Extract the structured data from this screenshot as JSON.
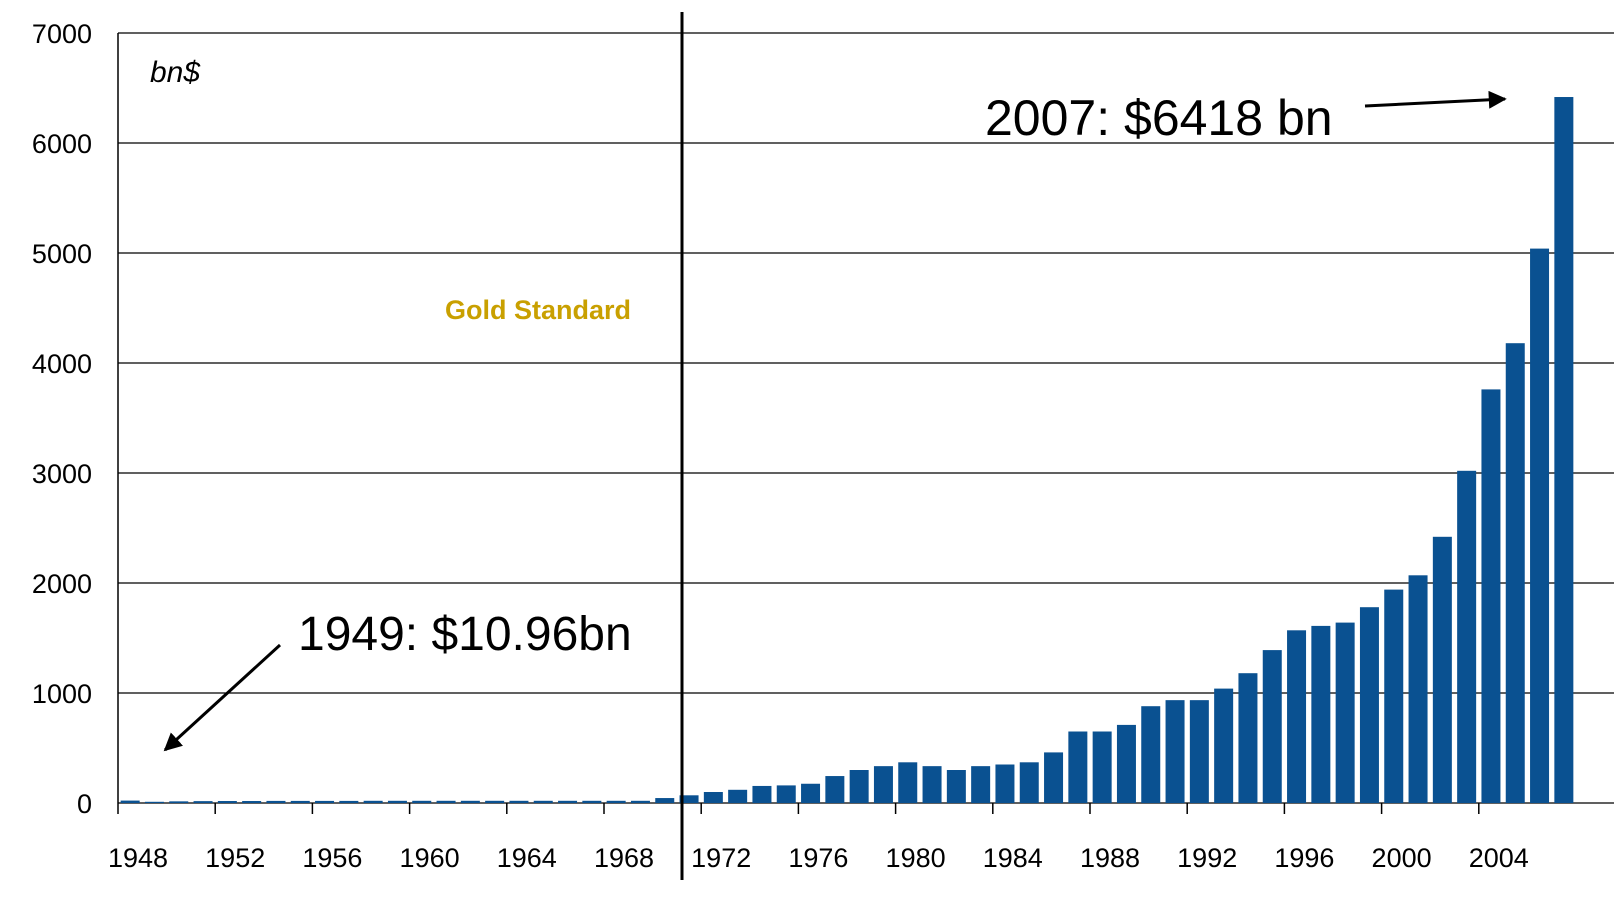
{
  "chart_data": {
    "type": "bar",
    "unit_label": "bn$",
    "annotations": [
      "Gold Standard",
      "2007: $6418 bn",
      "1949: $10.96bn"
    ],
    "categories": [
      "1948",
      null,
      null,
      null,
      "1952",
      null,
      null,
      null,
      "1956",
      null,
      null,
      null,
      "1960",
      null,
      null,
      null,
      "1964",
      null,
      null,
      null,
      "1968",
      null,
      null,
      null,
      "1972",
      null,
      null,
      null,
      "1976",
      null,
      null,
      null,
      "1980",
      null,
      null,
      null,
      "1984",
      null,
      null,
      null,
      "1988",
      null,
      null,
      null,
      "1992",
      null,
      null,
      null,
      "1996",
      null,
      null,
      null,
      "2000",
      null,
      null,
      null,
      "2004",
      null,
      null,
      null
    ],
    "values": [
      22,
      10.96,
      15,
      17,
      18,
      18,
      19,
      19,
      19,
      19,
      20,
      20,
      20,
      20,
      20,
      20,
      20,
      20,
      20,
      20,
      20,
      20,
      45,
      70,
      100,
      120,
      155,
      160,
      175,
      245,
      300,
      335,
      370,
      335,
      300,
      335,
      350,
      370,
      460,
      650,
      650,
      710,
      880,
      935,
      935,
      1040,
      1180,
      1390,
      1570,
      1610,
      1640,
      1780,
      1940,
      2070,
      2420,
      3020,
      3760,
      4180,
      5040,
      6418
    ],
    "color": "#0a5191",
    "ylim": [
      0,
      7000
    ],
    "yticks": [
      0,
      1000,
      2000,
      3000,
      4000,
      5000,
      6000,
      7000
    ],
    "grid": true
  }
}
